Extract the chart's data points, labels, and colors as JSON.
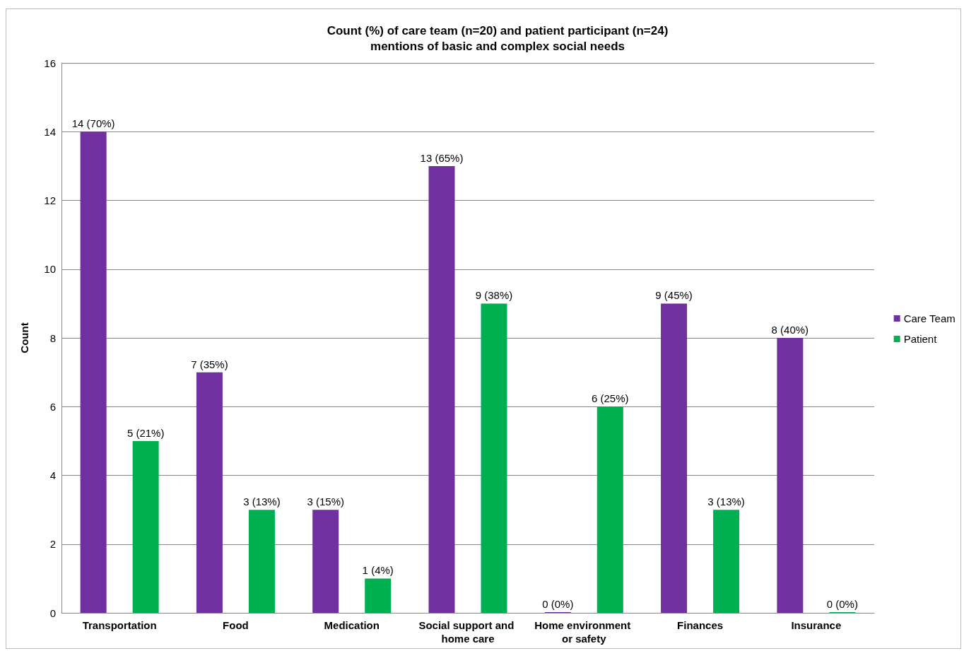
{
  "chart_data": {
    "type": "bar",
    "title": "Count (%) of care team (n=20) and patient participant (n=24)\nmentions of basic and complex social needs",
    "ylabel": "Count",
    "categories": [
      "Transportation",
      "Food",
      "Medication",
      "Social support and home care",
      "Home environment or safety",
      "Finances",
      "Insurance"
    ],
    "series": [
      {
        "name": "Care Team",
        "color": "#7030a0",
        "values": [
          14,
          7,
          3,
          13,
          0,
          9,
          8
        ],
        "value_labels": [
          "14 (70%)",
          "7 (35%)",
          "3 (15%)",
          "13 (65%)",
          "0 (0%)",
          "9 (45%)",
          "8 (40%)"
        ]
      },
      {
        "name": "Patient",
        "color": "#00b050",
        "values": [
          5,
          3,
          1,
          9,
          6,
          3,
          0
        ],
        "value_labels": [
          "5 (21%)",
          "3 (13%)",
          "1 (4%)",
          "9 (38%)",
          "6 (25%)",
          "3 (13%)",
          "0 (0%)"
        ]
      }
    ],
    "ylim": [
      0,
      16
    ],
    "yticks": [
      0,
      2,
      4,
      6,
      8,
      10,
      12,
      14,
      16
    ],
    "grid": "y",
    "legend": "right"
  }
}
